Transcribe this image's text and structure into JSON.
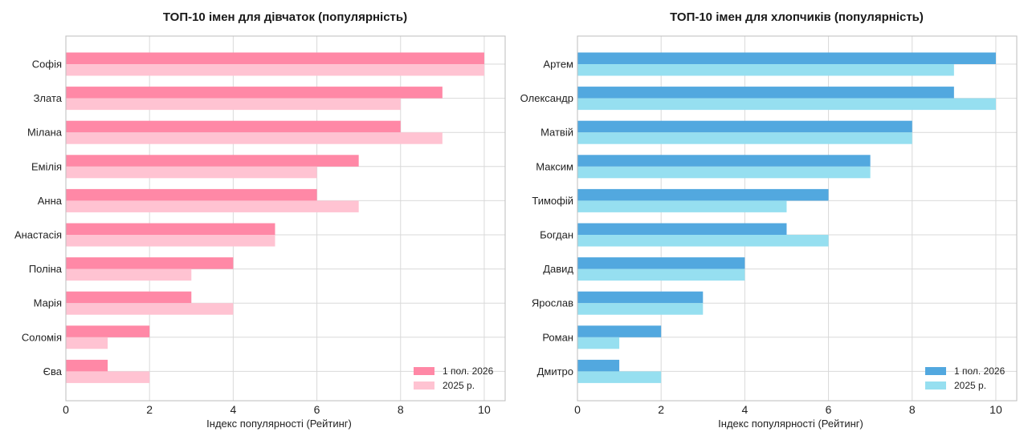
{
  "chart_data": [
    {
      "type": "bar",
      "orientation": "horizontal",
      "title": "ТОП-10 імен для дівчаток (популярність)",
      "xlabel": "Індекс популярності (Рейтинг)",
      "ylabel": "",
      "xlim": [
        0,
        10.5
      ],
      "xticks": [
        0,
        2,
        4,
        6,
        8,
        10
      ],
      "grid": true,
      "legend_position": "lower-right",
      "categories": [
        "Софія",
        "Злата",
        "Мілана",
        "Емілія",
        "Анна",
        "Анастасія",
        "Поліна",
        "Марія",
        "Соломія",
        "Єва"
      ],
      "series": [
        {
          "name": "1 пол. 2026",
          "color": "#ff88a6",
          "values": [
            10,
            9,
            8,
            7,
            6,
            5,
            4,
            3,
            2,
            1
          ]
        },
        {
          "name": "2025 р.",
          "color": "#ffc3d2",
          "values": [
            10,
            8,
            9,
            6,
            7,
            5,
            3,
            4,
            1,
            2
          ]
        }
      ]
    },
    {
      "type": "bar",
      "orientation": "horizontal",
      "title": "ТОП-10 імен для хлопчиків (популярність)",
      "xlabel": "Індекс популярності (Рейтинг)",
      "ylabel": "",
      "xlim": [
        0,
        10.5
      ],
      "xticks": [
        0,
        2,
        4,
        6,
        8,
        10
      ],
      "grid": true,
      "legend_position": "lower-right",
      "categories": [
        "Артем",
        "Олександр",
        "Матвій",
        "Максим",
        "Тимофій",
        "Богдан",
        "Давид",
        "Ярослав",
        "Роман",
        "Дмитро"
      ],
      "series": [
        {
          "name": "1 пол. 2026",
          "color": "#52a8df",
          "values": [
            10,
            9,
            8,
            7,
            6,
            5,
            4,
            3,
            2,
            1
          ]
        },
        {
          "name": "2025 р.",
          "color": "#96dff0",
          "values": [
            9,
            10,
            8,
            7,
            5,
            6,
            4,
            3,
            1,
            2
          ]
        }
      ]
    }
  ]
}
